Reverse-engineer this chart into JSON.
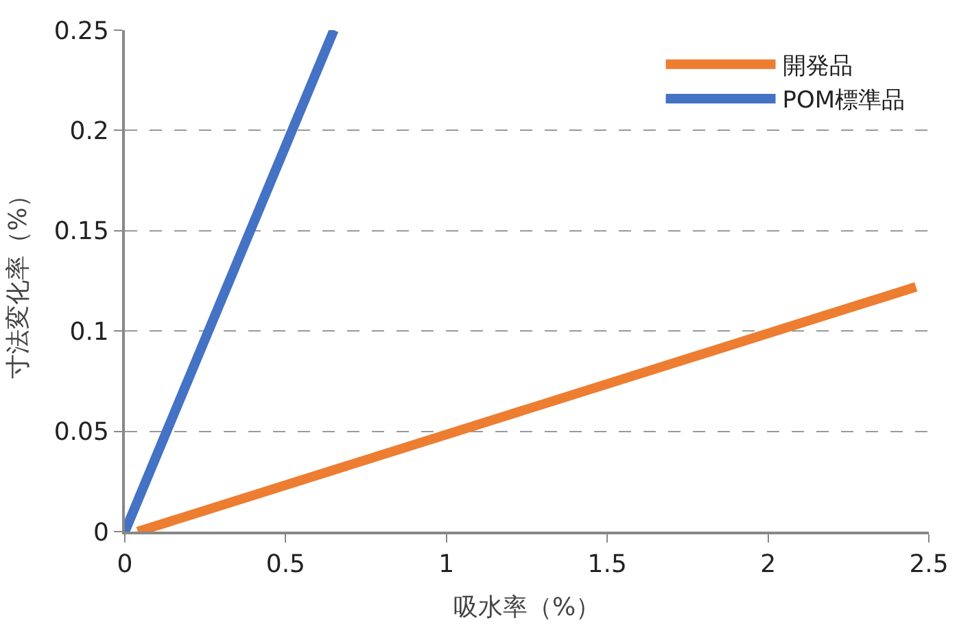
{
  "chart_data": {
    "type": "line",
    "xlabel": "吸水率（%）",
    "ylabel": "寸法変化率（%）",
    "xlim": [
      0,
      2.5
    ],
    "xticks": [
      0,
      0.5,
      1,
      1.5,
      2,
      2.5
    ],
    "ylim": [
      0,
      0.25
    ],
    "yticks": [
      0,
      0.05,
      0.1,
      0.15,
      0.2,
      0.25
    ],
    "grid": "y",
    "legend": "top right",
    "marker": "none",
    "line_style": "solid",
    "series": [
      {
        "name": "開発品",
        "color": "#ed7d31",
        "x": [
          0.04,
          2.46
        ],
        "values": [
          0,
          0.122
        ]
      },
      {
        "name": "POM標準品",
        "color": "#4472c4",
        "x": [
          0,
          0.65
        ],
        "values": [
          0,
          0.25
        ]
      }
    ]
  }
}
